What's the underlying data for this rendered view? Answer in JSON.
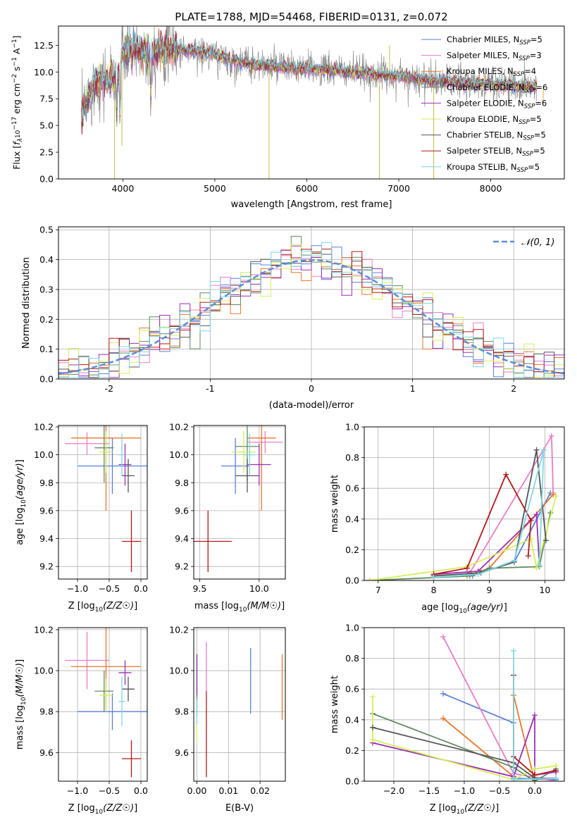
{
  "figure": {
    "title": "PLATE=1788, MJD=54468, FIBERID=0131, z=0.072"
  },
  "colors": {
    "Chabrier MILES": "#5b7fd8",
    "Salpeter MILES": "#e87ec6",
    "Kroupa MILES": "#e8772a",
    "Chabrier ELODIE": "#5f8a5f",
    "Salpeter ELODIE": "#9b2fb4",
    "Kroupa ELODIE": "#d5ee58",
    "Chabrier STELIB": "#555555",
    "Salpeter STELIB": "#b21818",
    "Kroupa STELIB": "#7fd6e8",
    "data": "#808080"
  },
  "chart_data": [
    {
      "id": "spectrum",
      "type": "line",
      "title": "PLATE=1788, MJD=54468, FIBERID=0131, z=0.072",
      "xlabel": "wavelength [Angstrom, rest frame]",
      "ylabel": "Flux [f_λ 10^-17 erg cm^-2 s^-1 A^-1]",
      "xlim": [
        3300,
        8800
      ],
      "ylim": [
        0,
        14.3
      ],
      "xticks": [
        4000,
        5000,
        6000,
        7000,
        8000
      ],
      "yticks": [
        "0.0",
        "2.5",
        "5.0",
        "7.5",
        "10.0",
        "12.5"
      ],
      "grid": false,
      "legend": "top-right",
      "legend_entries": [
        {
          "model": "Chabrier MILES",
          "text": "Chabrier MILES, N",
          "sub": "SSP",
          "tail": "=5"
        },
        {
          "model": "Salpeter MILES",
          "text": "Salpeter MILES, N",
          "sub": "SSP",
          "tail": "=3"
        },
        {
          "model": "Kroupa MILES",
          "text": "Kroupa MILES, N",
          "sub": "SSP",
          "tail": "=4"
        },
        {
          "model": "Chabrier ELODIE",
          "text": "Chabrier ELODIE, N",
          "sub": "SSP",
          "tail": "=6"
        },
        {
          "model": "Salpeter ELODIE",
          "text": "Salpeter ELODIE, N",
          "sub": "SSP",
          "tail": "=6"
        },
        {
          "model": "Kroupa ELODIE",
          "text": "Kroupa ELODIE, N",
          "sub": "SSP",
          "tail": "=5"
        },
        {
          "model": "Chabrier STELIB",
          "text": "Chabrier STELIB, N",
          "sub": "SSP",
          "tail": "=5"
        },
        {
          "model": "Salpeter STELIB",
          "text": "Salpeter STELIB, N",
          "sub": "SSP",
          "tail": "=5"
        },
        {
          "model": "Kroupa STELIB",
          "text": "Kroupa STELIB, N",
          "sub": "SSP",
          "tail": "=5"
        }
      ],
      "continuum_wavelength": [
        3550,
        3650,
        3750,
        3850,
        3950,
        4000,
        4100,
        4200,
        4300,
        4400,
        4600,
        4800,
        5000,
        5200,
        5500,
        6000,
        6500,
        7000,
        7400,
        7800,
        8200,
        8500
      ],
      "continuum_flux": [
        5.6,
        8.3,
        9.5,
        9.0,
        9.5,
        11.8,
        12.3,
        12.0,
        11.5,
        12.3,
        12.1,
        12.0,
        11.6,
        11.1,
        10.6,
        10.3,
        10.0,
        9.6,
        9.2,
        8.9,
        8.8,
        8.6
      ],
      "absorption_lines": [
        {
          "x": 3933,
          "y": 5.0
        },
        {
          "x": 3968,
          "y": 4.3
        },
        {
          "x": 4101,
          "y": 10.3
        },
        {
          "x": 4304,
          "y": 6.4
        },
        {
          "x": 4861,
          "y": 11.0
        },
        {
          "x": 5175,
          "y": 9.8
        },
        {
          "x": 5890,
          "y": 9.6
        },
        {
          "x": 6563,
          "y": 9.6
        }
      ],
      "spikes": [
        {
          "x": 3910,
          "y": 0.0
        },
        {
          "x": 3990,
          "y": 3.1
        },
        {
          "x": 5590,
          "y": 0.0
        },
        {
          "x": 6790,
          "y": 0.0
        },
        {
          "x": 6900,
          "y": 12.5
        },
        {
          "x": 7380,
          "y": 0.0
        },
        {
          "x": 8570,
          "y": 7.0
        }
      ]
    },
    {
      "id": "residuals",
      "type": "step",
      "xlabel": "(data-model)/error",
      "ylabel": "Normed distribution",
      "xlim": [
        -2.5,
        2.5
      ],
      "ylim": [
        0,
        0.51
      ],
      "xticks": [
        -2,
        -1,
        0,
        1,
        2
      ],
      "yticks": [
        "0.0",
        "0.1",
        "0.2",
        "0.3",
        "0.4",
        "0.5"
      ],
      "grid": true,
      "legend": "top-right",
      "normal_label": "𝒩(0, 1)",
      "normal_color": "#5b8fd8",
      "bin_width": 0.1
    },
    {
      "id": "age-vs-Z",
      "type": "errorbar",
      "xlabel": "Z [log10(Z/Z☉)]",
      "ylabel": "age  [log10(age/yr)]",
      "xlim": [
        -1.3,
        0.1
      ],
      "ylim": [
        9.11,
        10.21
      ],
      "xticks": [
        "−1.0",
        "−0.5",
        "0.0"
      ],
      "yticks": [
        "9.2",
        "9.4",
        "9.6",
        "9.8",
        "10.0",
        "10.2"
      ],
      "grid": true,
      "points": [
        {
          "model": "Chabrier MILES",
          "x": -0.45,
          "xerr": 0.55,
          "y": 9.92,
          "yerr": 0.2
        },
        {
          "model": "Salpeter MILES",
          "x": -0.85,
          "xerr": 0.35,
          "y": 10.08,
          "yerr": 0.08
        },
        {
          "model": "Kroupa MILES",
          "x": -0.55,
          "xerr": 0.55,
          "y": 10.12,
          "yerr": 0.52
        },
        {
          "model": "Chabrier ELODIE",
          "x": -0.58,
          "xerr": 0.15,
          "y": 10.05,
          "yerr": 0.25
        },
        {
          "model": "Salpeter ELODIE",
          "x": -0.25,
          "xerr": 0.1,
          "y": 9.93,
          "yerr": 0.15
        },
        {
          "model": "Kroupa ELODIE",
          "x": -0.55,
          "xerr": 0.1,
          "y": 10.02,
          "yerr": 0.15
        },
        {
          "model": "Chabrier STELIB",
          "x": -0.2,
          "xerr": 0.1,
          "y": 9.85,
          "yerr": 0.12
        },
        {
          "model": "Salpeter STELIB",
          "x": -0.15,
          "xerr": 0.15,
          "y": 9.38,
          "yerr": 0.22
        },
        {
          "model": "Kroupa STELIB",
          "x": -0.3,
          "xerr": 0.05,
          "y": 10.0,
          "yerr": 0.15
        }
      ]
    },
    {
      "id": "age-vs-mass",
      "type": "errorbar",
      "xlabel": "mass [log10(M/M☉)]",
      "ylabel": "",
      "xlim": [
        9.45,
        10.22
      ],
      "ylim": [
        9.11,
        10.21
      ],
      "xticks": [
        "9.5",
        "10.0"
      ],
      "yticks": [
        "9.2",
        "9.4",
        "9.6",
        "9.8",
        "10.0",
        "10.2"
      ],
      "grid": true,
      "points": [
        {
          "model": "Chabrier MILES",
          "x": 9.8,
          "xerr": 0.12,
          "y": 9.92,
          "yerr": 0.2
        },
        {
          "model": "Salpeter MILES",
          "x": 10.05,
          "xerr": 0.15,
          "y": 10.09,
          "yerr": 0.08
        },
        {
          "model": "Kroupa MILES",
          "x": 10.02,
          "xerr": 0.12,
          "y": 10.12,
          "yerr": 0.52
        },
        {
          "model": "Chabrier ELODIE",
          "x": 9.9,
          "xerr": 0.1,
          "y": 10.06,
          "yerr": 0.25
        },
        {
          "model": "Salpeter ELODIE",
          "x": 10.0,
          "xerr": 0.1,
          "y": 9.93,
          "yerr": 0.15
        },
        {
          "model": "Kroupa ELODIE",
          "x": 9.87,
          "xerr": 0.1,
          "y": 10.02,
          "yerr": 0.15
        },
        {
          "model": "Chabrier STELIB",
          "x": 9.9,
          "xerr": 0.1,
          "y": 9.85,
          "yerr": 0.12
        },
        {
          "model": "Salpeter STELIB",
          "x": 9.57,
          "xerr": 0.2,
          "y": 9.38,
          "yerr": 0.22
        },
        {
          "model": "Kroupa STELIB",
          "x": 9.92,
          "xerr": 0.05,
          "y": 10.0,
          "yerr": 0.15
        }
      ]
    },
    {
      "id": "massweight-vs-age",
      "type": "line",
      "xlabel": "age  [log10(age/yr)]",
      "ylabel": "mass weight",
      "xlim": [
        6.75,
        10.35
      ],
      "ylim": [
        0,
        1.0
      ],
      "xticks": [
        "7",
        "8",
        "9",
        "10"
      ],
      "yticks": [
        "0.0",
        "0.2",
        "0.4",
        "0.6",
        "0.8",
        "1.0"
      ],
      "grid": true,
      "series": [
        {
          "model": "Chabrier MILES",
          "x": [
            8.0,
            8.65,
            9.45,
            10.1
          ],
          "y": [
            0.02,
            0.03,
            0.12,
            0.57
          ]
        },
        {
          "model": "Salpeter MILES",
          "x": [
            8.65,
            10.12,
            10.15
          ],
          "y": [
            0.05,
            0.94,
            0.57
          ]
        },
        {
          "model": "Kroupa MILES",
          "x": [
            8.6,
            9.0,
            10.15
          ],
          "y": [
            0.03,
            0.08,
            0.56
          ]
        },
        {
          "model": "Chabrier ELODIE",
          "x": [
            6.85,
            8.7,
            9.0,
            9.9,
            10.1
          ],
          "y": [
            0.0,
            0.03,
            0.08,
            0.09,
            0.44
          ]
        },
        {
          "model": "Salpeter ELODIE",
          "x": [
            8.0,
            8.8,
            9.85,
            9.9
          ],
          "y": [
            0.04,
            0.06,
            0.43,
            0.1
          ]
        },
        {
          "model": "Kroupa ELODIE",
          "x": [
            6.85,
            8.6,
            9.75,
            9.85,
            10.2
          ],
          "y": [
            0.0,
            0.09,
            0.27,
            0.08,
            0.55
          ]
        },
        {
          "model": "Chabrier STELIB",
          "x": [
            8.0,
            8.85,
            9.45,
            9.85,
            10.02
          ],
          "y": [
            0.03,
            0.05,
            0.12,
            0.85,
            0.26
          ]
        },
        {
          "model": "Salpeter STELIB",
          "x": [
            8.0,
            8.6,
            9.3,
            9.75,
            9.7
          ],
          "y": [
            0.04,
            0.08,
            0.69,
            0.39,
            0.16
          ]
        },
        {
          "model": "Kroupa STELIB",
          "x": [
            8.0,
            8.8,
            9.45,
            9.98,
            9.9
          ],
          "y": [
            0.02,
            0.04,
            0.13,
            0.85,
            0.1
          ]
        }
      ]
    },
    {
      "id": "mass-vs-Z",
      "type": "errorbar",
      "xlabel": "Z [log10(Z/Z☉)]",
      "ylabel": "mass [log10(M/M☉)]",
      "xlim": [
        -1.3,
        0.1
      ],
      "ylim": [
        9.46,
        10.21
      ],
      "xticks": [
        "−1.0",
        "−0.5",
        "0.0"
      ],
      "yticks": [
        "9.6",
        "9.8",
        "10.0",
        "10.2"
      ],
      "grid": true,
      "points": [
        {
          "model": "Chabrier MILES",
          "x": -0.45,
          "xerr": 0.55,
          "y": 9.8,
          "yerr": 0.09
        },
        {
          "model": "Salpeter MILES",
          "x": -0.85,
          "xerr": 0.35,
          "y": 10.05,
          "yerr": 0.14
        },
        {
          "model": "Kroupa MILES",
          "x": -0.55,
          "xerr": 0.55,
          "y": 10.02,
          "yerr": 0.21
        },
        {
          "model": "Chabrier ELODIE",
          "x": -0.58,
          "xerr": 0.15,
          "y": 9.9,
          "yerr": 0.1
        },
        {
          "model": "Salpeter ELODIE",
          "x": -0.25,
          "xerr": 0.1,
          "y": 9.99,
          "yerr": 0.06
        },
        {
          "model": "Kroupa ELODIE",
          "x": -0.55,
          "xerr": 0.1,
          "y": 9.88,
          "yerr": 0.08
        },
        {
          "model": "Chabrier STELIB",
          "x": -0.2,
          "xerr": 0.1,
          "y": 9.91,
          "yerr": 0.06
        },
        {
          "model": "Salpeter STELIB",
          "x": -0.15,
          "xerr": 0.15,
          "y": 9.57,
          "yerr": 0.09
        },
        {
          "model": "Kroupa STELIB",
          "x": -0.3,
          "xerr": 0.05,
          "y": 9.85,
          "yerr": 0.12
        }
      ]
    },
    {
      "id": "mass-vs-EBV",
      "type": "errorbar",
      "xlabel": "E(B-V)",
      "ylabel": "",
      "xlim": [
        -0.001,
        0.028
      ],
      "ylim": [
        9.46,
        10.21
      ],
      "xticks": [
        "0.00",
        "0.01",
        "0.02"
      ],
      "yticks": [
        "9.6",
        "9.8",
        "10.0",
        "10.2"
      ],
      "grid": true,
      "points": [
        {
          "model": "Chabrier MILES",
          "x": 0.017,
          "xerr": 0,
          "y": 9.95,
          "yerr": 0.16
        },
        {
          "model": "Salpeter MILES",
          "x": 0.003,
          "xerr": 0,
          "y": 10.02,
          "yerr": 0.12
        },
        {
          "model": "Kroupa MILES",
          "x": 0.027,
          "xerr": 0,
          "y": 9.92,
          "yerr": 0.16
        },
        {
          "model": "Chabrier ELODIE",
          "x": 0.0,
          "xerr": 0,
          "y": 9.93,
          "yerr": 0.15
        },
        {
          "model": "Salpeter ELODIE",
          "x": 0.0,
          "xerr": 0,
          "y": 9.98,
          "yerr": 0.1
        },
        {
          "model": "Kroupa ELODIE",
          "x": 0.0,
          "xerr": 0,
          "y": 9.7,
          "yerr": 0.05
        },
        {
          "model": "Salpeter STELIB",
          "x": 0.003,
          "xerr": 0,
          "y": 9.69,
          "yerr": 0.21
        },
        {
          "model": "Kroupa STELIB",
          "x": 0.0,
          "xerr": 0,
          "y": 9.8,
          "yerr": 0.06
        }
      ]
    },
    {
      "id": "massweight-vs-Z",
      "type": "line",
      "xlabel": "Z [log10(Z/Z☉)]",
      "ylabel": "mass weight",
      "xlim": [
        -2.42,
        0.42
      ],
      "ylim": [
        0,
        1.0
      ],
      "xticks": [
        "−2.0",
        "−1.5",
        "−1.0",
        "−0.5",
        "0.0"
      ],
      "yticks": [
        "0.0",
        "0.2",
        "0.4",
        "0.6",
        "0.8",
        "1.0"
      ],
      "grid": true,
      "series": [
        {
          "model": "Chabrier MILES",
          "x": [
            -1.3,
            -0.3,
            -0.3,
            0.3
          ],
          "y": [
            0.57,
            0.38,
            0.02,
            0.01
          ]
        },
        {
          "model": "Salpeter MILES",
          "x": [
            -1.3,
            -0.3,
            0.3
          ],
          "y": [
            0.94,
            0.05,
            0.0
          ]
        },
        {
          "model": "Kroupa MILES",
          "x": [
            -1.3,
            -0.3,
            -0.3,
            0.0
          ],
          "y": [
            0.41,
            0.03,
            0.56,
            0.0
          ]
        },
        {
          "model": "Chabrier ELODIE",
          "x": [
            -2.3,
            -0.3,
            0.0,
            0.3
          ],
          "y": [
            0.44,
            0.09,
            0.0,
            0.08
          ]
        },
        {
          "model": "Salpeter ELODIE",
          "x": [
            -2.3,
            -0.3,
            0.0,
            0.0,
            0.3
          ],
          "y": [
            0.25,
            0.03,
            0.43,
            0.04,
            0.06
          ]
        },
        {
          "model": "Kroupa ELODIE",
          "x": [
            -2.3,
            -2.3,
            -0.3,
            0.0,
            0.3
          ],
          "y": [
            0.55,
            0.27,
            0.01,
            0.08,
            0.1
          ]
        },
        {
          "model": "Chabrier STELIB",
          "x": [
            -2.3,
            -0.3,
            0.0,
            0.3
          ],
          "y": [
            0.35,
            0.12,
            0.02,
            0.02
          ]
        },
        {
          "model": "Salpeter STELIB",
          "x": [
            -0.3,
            -0.3,
            0.0,
            0.3
          ],
          "y": [
            0.69,
            0.16,
            0.04,
            0.07
          ]
        },
        {
          "model": "Kroupa STELIB",
          "x": [
            -0.3,
            -0.3,
            0.3
          ],
          "y": [
            0.85,
            0.01,
            0.02
          ]
        }
      ]
    }
  ]
}
